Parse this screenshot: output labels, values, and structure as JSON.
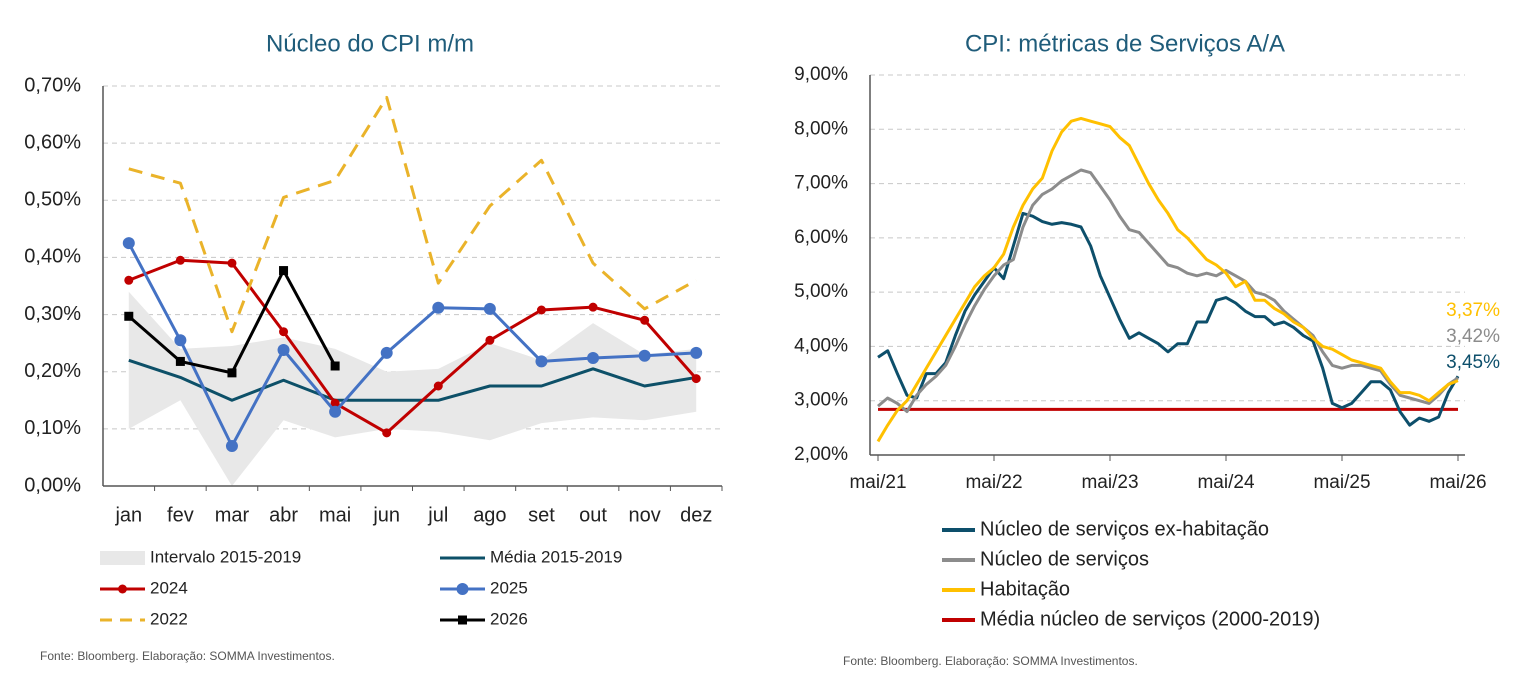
{
  "chart_data": [
    {
      "type": "line",
      "title": "Núcleo do CPI m/m",
      "categories": [
        "jan",
        "fev",
        "mar",
        "abr",
        "mai",
        "jun",
        "jul",
        "ago",
        "set",
        "out",
        "nov",
        "dez"
      ],
      "ylim": [
        0,
        0.7
      ],
      "yticks": [
        {
          "value": 0,
          "label": "0,00%"
        },
        {
          "value": 0.1,
          "label": "0,10%"
        },
        {
          "value": 0.2,
          "label": "0,20%"
        },
        {
          "value": 0.3,
          "label": "0,30%"
        },
        {
          "value": 0.4,
          "label": "0,40%"
        },
        {
          "value": 0.5,
          "label": "0,50%"
        },
        {
          "value": 0.6,
          "label": "0,60%"
        },
        {
          "value": 0.7,
          "label": "0,70%"
        }
      ],
      "grid": true,
      "series": [
        {
          "name": "Intervalo 2015-2019",
          "color": "#e8e8e8",
          "type": "band",
          "low": [
            0.1,
            0.15,
            0.0,
            0.115,
            0.085,
            0.1,
            0.095,
            0.08,
            0.11,
            0.12,
            0.115,
            0.13
          ],
          "high": [
            0.34,
            0.24,
            0.245,
            0.26,
            0.24,
            0.2,
            0.205,
            0.25,
            0.22,
            0.285,
            0.23,
            0.24
          ]
        },
        {
          "name": "Média 2015-2019",
          "color": "#0d5068",
          "values": [
            0.22,
            0.19,
            0.15,
            0.185,
            0.15,
            0.15,
            0.15,
            0.175,
            0.175,
            0.205,
            0.175,
            0.19
          ]
        },
        {
          "name": "2024",
          "color": "#c00000",
          "marker": "circle",
          "values": [
            0.36,
            0.395,
            0.39,
            0.27,
            0.145,
            0.093,
            0.175,
            0.255,
            0.308,
            0.313,
            0.29,
            0.188
          ]
        },
        {
          "name": "2025",
          "color": "#4472c4",
          "marker": "circle",
          "values": [
            0.425,
            0.255,
            0.07,
            0.238,
            0.13,
            0.233,
            0.312,
            0.31,
            0.218,
            0.224,
            0.228,
            0.233
          ]
        },
        {
          "name": "2022",
          "color": "#eab32a",
          "dash": true,
          "values": [
            0.555,
            0.53,
            0.27,
            0.505,
            0.535,
            0.68,
            0.355,
            0.49,
            0.57,
            0.39,
            0.31,
            0.36
          ]
        },
        {
          "name": "2026",
          "color": "#000000",
          "marker": "square",
          "values": [
            0.297,
            0.218,
            0.198,
            0.377,
            0.21,
            null,
            null,
            null,
            null,
            null,
            null,
            null
          ]
        }
      ],
      "source": "Fonte: Bloomberg. Elaboração: SOMMA Investimentos."
    },
    {
      "type": "line",
      "title": "CPI: métricas de Serviços A/A",
      "categories": [
        "mai/21",
        null,
        null,
        null,
        null,
        null,
        null,
        null,
        null,
        null,
        null,
        null,
        "mai/22",
        null,
        null,
        null,
        null,
        null,
        null,
        null,
        null,
        null,
        null,
        null,
        "mai/23",
        null,
        null,
        null,
        null,
        null,
        null,
        null,
        null,
        null,
        null,
        null,
        "mai/24",
        null,
        null,
        null,
        null,
        null,
        null,
        null,
        null,
        null,
        null,
        null,
        "mai/25",
        null,
        null,
        null,
        null,
        null,
        null,
        null,
        null,
        null,
        null,
        null,
        "mai/26"
      ],
      "ylim": [
        2,
        9
      ],
      "yticks": [
        {
          "value": 2,
          "label": "2,00%"
        },
        {
          "value": 3,
          "label": "3,00%"
        },
        {
          "value": 4,
          "label": "4,00%"
        },
        {
          "value": 5,
          "label": "5,00%"
        },
        {
          "value": 6,
          "label": "6,00%"
        },
        {
          "value": 7,
          "label": "7,00%"
        },
        {
          "value": 8,
          "label": "8,00%"
        },
        {
          "value": 9,
          "label": "9,00%"
        }
      ],
      "grid": true,
      "series": [
        {
          "name": "Núcleo de serviços ex-habitação",
          "color": "#0d4f6b",
          "end_label": "3,45%",
          "values": [
            3.8,
            3.92,
            3.5,
            3.1,
            3.05,
            3.5,
            3.5,
            3.7,
            4.2,
            4.65,
            4.95,
            5.2,
            5.45,
            5.25,
            5.85,
            6.45,
            6.4,
            6.3,
            6.25,
            6.28,
            6.25,
            6.2,
            5.85,
            5.3,
            4.9,
            4.5,
            4.15,
            4.25,
            4.15,
            4.05,
            3.9,
            4.05,
            4.05,
            4.45,
            4.45,
            4.85,
            4.9,
            4.8,
            4.65,
            4.55,
            4.55,
            4.4,
            4.45,
            4.35,
            4.2,
            4.1,
            3.6,
            2.95,
            2.87,
            2.95,
            3.15,
            3.35,
            3.35,
            3.2,
            2.8,
            2.55,
            2.68,
            2.62,
            2.7,
            3.15,
            3.45
          ]
        },
        {
          "name": "Núcleo de serviços",
          "color": "#8c8c8c",
          "end_label": "3,42%",
          "values": [
            2.9,
            3.05,
            2.95,
            2.8,
            3.1,
            3.3,
            3.45,
            3.65,
            4.0,
            4.4,
            4.75,
            5.05,
            5.3,
            5.5,
            5.6,
            6.2,
            6.6,
            6.8,
            6.9,
            7.05,
            7.15,
            7.25,
            7.2,
            6.95,
            6.7,
            6.4,
            6.15,
            6.1,
            5.9,
            5.7,
            5.5,
            5.45,
            5.35,
            5.3,
            5.35,
            5.3,
            5.4,
            5.3,
            5.2,
            5.0,
            4.95,
            4.85,
            4.65,
            4.5,
            4.35,
            4.2,
            3.9,
            3.65,
            3.6,
            3.65,
            3.65,
            3.6,
            3.55,
            3.3,
            3.1,
            3.05,
            3.0,
            2.95,
            3.1,
            3.3,
            3.42
          ]
        },
        {
          "name": "Habitação",
          "color": "#ffc000",
          "end_label": "3,37%",
          "values": [
            2.25,
            2.55,
            2.82,
            3.0,
            3.3,
            3.6,
            3.9,
            4.2,
            4.5,
            4.8,
            5.1,
            5.3,
            5.45,
            5.7,
            6.2,
            6.6,
            6.9,
            7.1,
            7.6,
            7.95,
            8.15,
            8.2,
            8.15,
            8.1,
            8.05,
            7.85,
            7.7,
            7.35,
            7.0,
            6.7,
            6.45,
            6.15,
            6.0,
            5.8,
            5.6,
            5.5,
            5.35,
            5.1,
            5.2,
            4.85,
            4.85,
            4.7,
            4.6,
            4.45,
            4.35,
            4.15,
            4.0,
            3.95,
            3.85,
            3.75,
            3.7,
            3.65,
            3.6,
            3.35,
            3.15,
            3.15,
            3.1,
            3.0,
            3.15,
            3.3,
            3.37
          ]
        },
        {
          "name": "Média núcleo de serviços (2000-2019)",
          "color": "#c00000",
          "type": "hline",
          "value": 2.84
        }
      ],
      "source": "Fonte: Bloomberg. Elaboração: SOMMA Investimentos."
    }
  ]
}
